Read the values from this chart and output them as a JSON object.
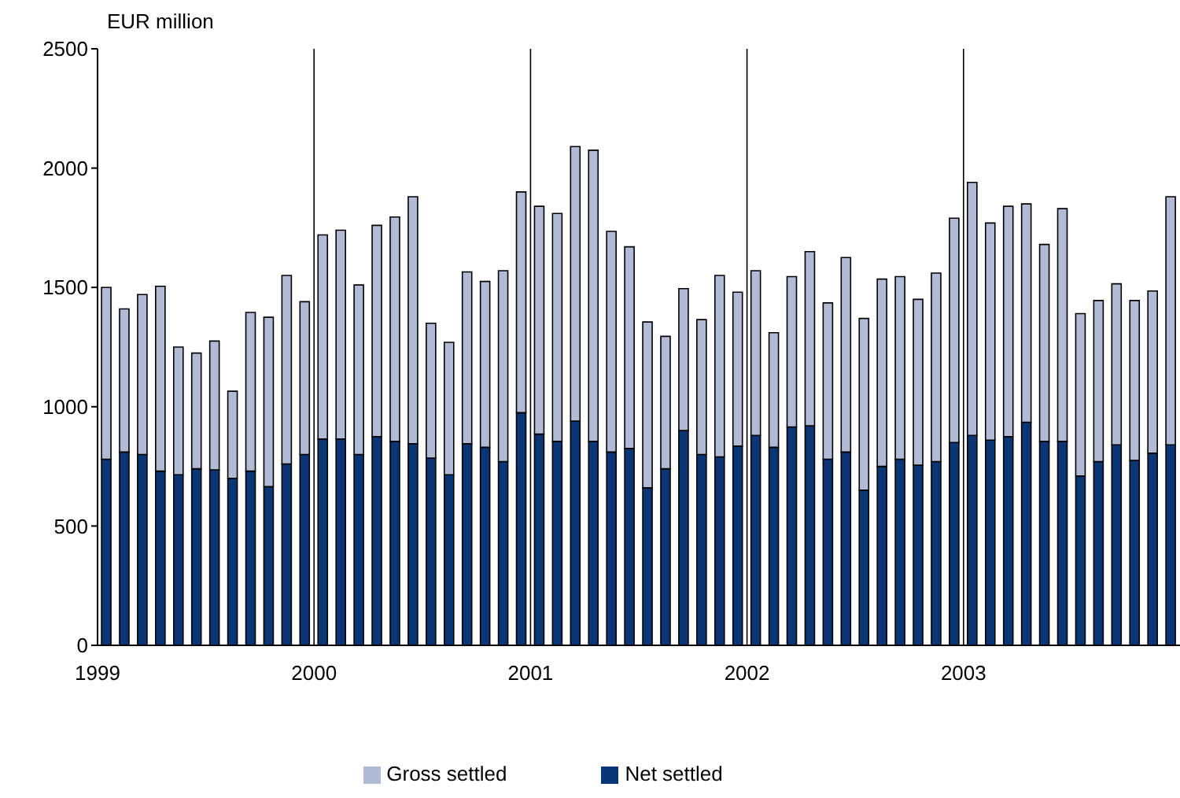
{
  "chart_data": {
    "type": "bar",
    "stacked": true,
    "ylabel": "EUR million",
    "categories": [
      "1999",
      null,
      null,
      null,
      null,
      null,
      null,
      null,
      null,
      null,
      null,
      null,
      "2000",
      null,
      null,
      null,
      null,
      null,
      null,
      null,
      null,
      null,
      null,
      null,
      "2001",
      null,
      null,
      null,
      null,
      null,
      null,
      null,
      null,
      null,
      null,
      null,
      "2002",
      null,
      null,
      null,
      null,
      null,
      null,
      null,
      null,
      null,
      null,
      null,
      "2003",
      null,
      null,
      null,
      null,
      null,
      null,
      null,
      null,
      null,
      null,
      null
    ],
    "series": [
      {
        "name": "Net settled",
        "color": "#0b3675",
        "values": [
          780,
          810,
          800,
          730,
          715,
          740,
          735,
          700,
          730,
          665,
          760,
          800,
          865,
          865,
          800,
          875,
          855,
          845,
          785,
          715,
          845,
          830,
          770,
          975,
          885,
          855,
          940,
          855,
          810,
          825,
          660,
          740,
          900,
          800,
          790,
          835,
          880,
          830,
          915,
          920,
          780,
          810,
          650,
          750,
          780,
          755,
          770,
          850,
          880,
          860,
          875,
          935,
          855,
          855,
          710,
          770,
          840,
          775,
          805,
          840
        ]
      },
      {
        "name": "Gross settled",
        "color": "#b1bbd5",
        "values": [
          720,
          600,
          670,
          775,
          535,
          485,
          540,
          365,
          665,
          710,
          790,
          640,
          855,
          875,
          710,
          885,
          940,
          1035,
          565,
          555,
          720,
          695,
          800,
          925,
          955,
          955,
          1150,
          1220,
          925,
          845,
          695,
          555,
          595,
          565,
          760,
          645,
          690,
          480,
          630,
          730,
          655,
          815,
          720,
          785,
          765,
          695,
          790,
          940,
          1060,
          910,
          965,
          915,
          825,
          975,
          680,
          675,
          675,
          670,
          680,
          1040
        ]
      }
    ],
    "ylim": [
      0,
      2500
    ],
    "yticks": [
      0,
      500,
      1000,
      1500,
      2000,
      2500
    ],
    "grid": true,
    "legend": "bottom"
  }
}
